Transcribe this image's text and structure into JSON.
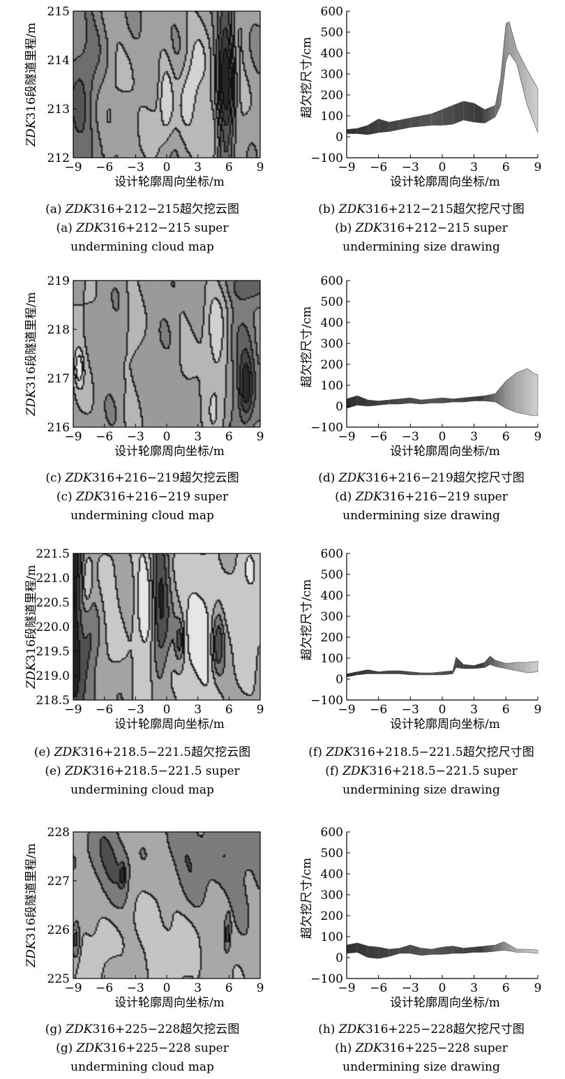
{
  "figure": {
    "x_tick_labels": [
      "−9",
      "−6",
      "−3",
      "0",
      "3",
      "6",
      "9"
    ],
    "x_axis_label": "设计轮廓周向坐标/m",
    "y_axis_label_size": "超欠挖尺寸/cm",
    "y_axis_label_station_prefix": "ZDK",
    "y_axis_label_station_rest": "316段隧道里程/m"
  },
  "panels": [
    {
      "id": "a",
      "kind": "contour",
      "caption_cn": [
        "(a) ",
        "ZDK",
        "316+212−215超欠挖云图"
      ],
      "caption_en_1": [
        "(a) ",
        "ZDK",
        "316+212−215 super"
      ],
      "caption_en_2": "undermining cloud map",
      "y_tick_labels": [
        "212",
        "213",
        "214",
        "215"
      ]
    },
    {
      "id": "b",
      "kind": "size",
      "caption_cn": [
        "(b) ",
        "ZDK",
        "316+212−215超欠挖尺寸图"
      ],
      "caption_en_1": [
        "(b) ",
        "ZDK",
        "316+212−215 super"
      ],
      "caption_en_2": "undermining size drawing",
      "y_tick_labels": [
        "−100",
        "0",
        "100",
        "200",
        "300",
        "400",
        "500",
        "600"
      ]
    },
    {
      "id": "c",
      "kind": "contour",
      "caption_cn": [
        "(c) ",
        "ZDK",
        "316+216−219超欠挖云图"
      ],
      "caption_en_1": [
        "(c) ",
        "ZDK",
        "316+216−219 super"
      ],
      "caption_en_2": "undermining cloud map",
      "y_tick_labels": [
        "216",
        "217",
        "218",
        "219"
      ]
    },
    {
      "id": "d",
      "kind": "size",
      "caption_cn": [
        "(d) ",
        "ZDK",
        "316+216−219超欠挖尺寸图"
      ],
      "caption_en_1": [
        "(d) ",
        "ZDK",
        "316+216−219 super"
      ],
      "caption_en_2": "undermining size drawing",
      "y_tick_labels": [
        "−100",
        "0",
        "100",
        "200",
        "300",
        "400",
        "500",
        "600"
      ]
    },
    {
      "id": "e",
      "kind": "contour",
      "caption_cn": [
        "(e) ",
        "ZDK",
        "316+218.5−221.5超欠挖云图"
      ],
      "caption_en_1": [
        "(e) ",
        "ZDK",
        "316+218.5−221.5 super"
      ],
      "caption_en_2": "undermining cloud map",
      "y_tick_labels": [
        "218.5",
        "219.0",
        "219.5",
        "220.0",
        "220.5",
        "221.0",
        "221.5"
      ]
    },
    {
      "id": "f",
      "kind": "size",
      "caption_cn": [
        "(f) ",
        "ZDK",
        "316+218.5−221.5超欠挖尺寸图"
      ],
      "caption_en_1": [
        "(f) ",
        "ZDK",
        "316+218.5−221.5 super"
      ],
      "caption_en_2": "undermining size drawing",
      "y_tick_labels": [
        "−100",
        "0",
        "100",
        "200",
        "300",
        "400",
        "500",
        "600"
      ]
    },
    {
      "id": "g",
      "kind": "contour",
      "caption_cn": [
        "(g) ",
        "ZDK",
        "316+225−228超欠挖云图"
      ],
      "caption_en_1": [
        "(g) ",
        "ZDK",
        "316+225−228 super"
      ],
      "caption_en_2": "undermining cloud map",
      "y_tick_labels": [
        "225",
        "226",
        "227",
        "228"
      ]
    },
    {
      "id": "h",
      "kind": "size",
      "caption_cn": [
        "(h) ",
        "ZDK",
        "316+225−228超欠挖尺寸图"
      ],
      "caption_en_1": [
        "(h) ",
        "ZDK",
        "316+225−228 super"
      ],
      "caption_en_2": "undermining size drawing",
      "y_tick_labels": [
        "−100",
        "0",
        "100",
        "200",
        "300",
        "400",
        "500",
        "600"
      ]
    }
  ],
  "chart_data": [
    {
      "panel": "a",
      "type": "heatmap",
      "xlabel": "设计轮廓周向坐标/m",
      "ylabel": "ZDK316段隧道里程/m",
      "xlim": [
        -9,
        9
      ],
      "ylim": [
        212,
        215
      ],
      "palette": [
        "#262626",
        "#3c3c3c",
        "#555555",
        "#6e6e6e",
        "#878787",
        "#a0a0a0",
        "#b9b9b9",
        "#d2d2d2"
      ],
      "features": [
        {
          "x": 5.8,
          "y": 213.6,
          "sx": 0.6,
          "sy": 1.6,
          "amp": -1.9
        },
        {
          "x": 6.6,
          "y": 213.5,
          "sx": 0.9,
          "sy": 2.5,
          "amp": 0.5
        },
        {
          "x": -8.6,
          "y": 212.5,
          "sx": 1.0,
          "sy": 0.8,
          "amp": -0.7
        },
        {
          "x": -7.5,
          "y": 214.2,
          "sx": 1.2,
          "sy": 1.0,
          "amp": -0.5
        },
        {
          "x": -5.0,
          "y": 213.5,
          "sx": 1.0,
          "sy": 1.5,
          "amp": 0.35
        },
        {
          "x": -1.5,
          "y": 212.8,
          "sx": 1.3,
          "sy": 0.8,
          "amp": 0.35
        },
        {
          "x": 0.0,
          "y": 213.2,
          "sx": 0.5,
          "sy": 0.6,
          "amp": 0.75
        },
        {
          "x": 2.2,
          "y": 213.1,
          "sx": 0.7,
          "sy": 0.6,
          "amp": 0.8
        },
        {
          "x": 3.2,
          "y": 214.3,
          "sx": 1.0,
          "sy": 0.7,
          "amp": 0.55
        },
        {
          "x": 4.2,
          "y": 212.4,
          "sx": 0.8,
          "sy": 0.6,
          "amp": 0.6
        }
      ]
    },
    {
      "panel": "b",
      "type": "area",
      "xlabel": "设计轮廓周向坐标/m",
      "ylabel": "超欠挖尺寸/cm",
      "xlim": [
        -9,
        9
      ],
      "ylim": [
        -100,
        600
      ],
      "x": [
        -9,
        -8,
        -7,
        -6,
        -5,
        -4,
        -3,
        -2,
        -1,
        0,
        1,
        2,
        3,
        4,
        5,
        5.5,
        6,
        6.3,
        7,
        8,
        9
      ],
      "upper": [
        35,
        40,
        55,
        85,
        70,
        80,
        90,
        100,
        110,
        130,
        150,
        170,
        160,
        130,
        150,
        280,
        540,
        550,
        420,
        320,
        230
      ],
      "lower": [
        15,
        15,
        10,
        20,
        25,
        35,
        45,
        50,
        55,
        55,
        60,
        80,
        70,
        65,
        95,
        150,
        360,
        400,
        350,
        150,
        20
      ]
    },
    {
      "panel": "c",
      "type": "heatmap",
      "xlabel": "设计轮廓周向坐标/m",
      "ylabel": "ZDK316段隧道里程/m",
      "xlim": [
        -9,
        9
      ],
      "ylim": [
        216,
        219
      ],
      "palette": [
        "#2a2a2a",
        "#464646",
        "#626262",
        "#7e7e7e",
        "#9a9a9a",
        "#b6b6b6",
        "#d0d0d0",
        "#e6e6e6"
      ],
      "features": [
        {
          "x": -8.4,
          "y": 217.2,
          "sx": 0.3,
          "sy": 0.25,
          "amp": 0.9
        },
        {
          "x": -8.2,
          "y": 217.6,
          "sx": 0.9,
          "sy": 1.0,
          "amp": 0.4
        },
        {
          "x": -3.2,
          "y": 217.5,
          "sx": 0.7,
          "sy": 3.0,
          "amp": 0.35
        },
        {
          "x": 1.8,
          "y": 217.4,
          "sx": 0.7,
          "sy": 2.0,
          "amp": 0.25
        },
        {
          "x": 4.8,
          "y": 217.4,
          "sx": 0.9,
          "sy": 1.2,
          "amp": 0.8
        },
        {
          "x": 7.7,
          "y": 216.8,
          "sx": 0.45,
          "sy": 0.45,
          "amp": -1.2
        },
        {
          "x": 7.3,
          "y": 217.2,
          "sx": 1.0,
          "sy": 0.8,
          "amp": -0.6
        },
        {
          "x": 7.8,
          "y": 218.9,
          "sx": 1.2,
          "sy": 0.25,
          "amp": -0.9
        }
      ]
    },
    {
      "panel": "d",
      "type": "area",
      "xlabel": "设计轮廓周向坐标/m",
      "ylabel": "超欠挖尺寸/cm",
      "xlim": [
        -9,
        9
      ],
      "ylim": [
        -100,
        600
      ],
      "x": [
        -9,
        -8,
        -7,
        -6,
        -5,
        -4,
        -3,
        -2,
        -1,
        0,
        1,
        2,
        3,
        4,
        5,
        6,
        7,
        8,
        8.5,
        9
      ],
      "upper": [
        35,
        50,
        30,
        25,
        30,
        35,
        40,
        30,
        35,
        40,
        35,
        40,
        45,
        50,
        60,
        120,
        160,
        180,
        160,
        150
      ],
      "lower": [
        -10,
        5,
        0,
        5,
        10,
        10,
        15,
        10,
        15,
        15,
        20,
        20,
        25,
        25,
        20,
        -10,
        -30,
        -40,
        -45,
        -45
      ]
    },
    {
      "panel": "e",
      "type": "heatmap",
      "xlabel": "设计轮廓周向坐标/m",
      "ylabel": "ZDK316段隧道里程/m",
      "xlim": [
        -9,
        9
      ],
      "ylim": [
        218.5,
        221.5
      ],
      "palette": [
        "#222222",
        "#505050",
        "#7a7a7a",
        "#a3a3a3",
        "#c8c8c8",
        "#e6e6e6"
      ],
      "features": [
        {
          "x": -8.8,
          "y": 220.0,
          "sx": 0.45,
          "sy": 1.8,
          "amp": -1.1
        },
        {
          "x": -7.5,
          "y": 219.2,
          "sx": 0.6,
          "sy": 0.9,
          "amp": -0.6
        },
        {
          "x": -7.6,
          "y": 220.9,
          "sx": 0.35,
          "sy": 0.4,
          "amp": 0.7
        },
        {
          "x": -5.3,
          "y": 220.3,
          "sx": 0.8,
          "sy": 1.0,
          "amp": 0.45
        },
        {
          "x": -2.0,
          "y": 220.4,
          "sx": 0.8,
          "sy": 1.8,
          "amp": 0.85
        },
        {
          "x": -0.6,
          "y": 220.5,
          "sx": 0.6,
          "sy": 1.0,
          "amp": -1.1
        },
        {
          "x": 1.3,
          "y": 219.7,
          "sx": 0.3,
          "sy": 0.3,
          "amp": -0.9
        },
        {
          "x": 3.2,
          "y": 220.0,
          "sx": 1.4,
          "sy": 2.0,
          "amp": 0.8
        },
        {
          "x": 5.0,
          "y": 219.7,
          "sx": 0.4,
          "sy": 0.5,
          "amp": -1.0
        },
        {
          "x": 7.8,
          "y": 220.5,
          "sx": 1.2,
          "sy": 1.2,
          "amp": 0.6
        }
      ]
    },
    {
      "panel": "f",
      "type": "area",
      "xlabel": "设计轮廓周向坐标/m",
      "ylabel": "超欠挖尺寸/cm",
      "xlim": [
        -9,
        9
      ],
      "ylim": [
        -100,
        600
      ],
      "x": [
        -9,
        -8,
        -7,
        -6,
        -5,
        -4,
        -3,
        -2,
        -1,
        0,
        1,
        1.3,
        2,
        3,
        4,
        4.5,
        5,
        6,
        7,
        8,
        9
      ],
      "upper": [
        25,
        35,
        45,
        35,
        40,
        40,
        35,
        30,
        30,
        35,
        40,
        105,
        70,
        65,
        80,
        110,
        90,
        75,
        80,
        80,
        85
      ],
      "lower": [
        10,
        20,
        25,
        25,
        25,
        25,
        20,
        20,
        20,
        20,
        25,
        55,
        50,
        50,
        55,
        70,
        60,
        50,
        40,
        30,
        35
      ]
    },
    {
      "panel": "g",
      "type": "heatmap",
      "xlabel": "设计轮廓周向坐标/m",
      "ylabel": "ZDK316段隧道里程/m",
      "xlim": [
        -9,
        9
      ],
      "ylim": [
        225,
        228
      ],
      "palette": [
        "#2a2a2a",
        "#4f4f4f",
        "#7c7c7c",
        "#a8a8a8",
        "#c4c4c4"
      ],
      "features": [
        {
          "x": -5.5,
          "y": 227.4,
          "sx": 1.6,
          "sy": 0.6,
          "amp": -0.7
        },
        {
          "x": 2.0,
          "y": 227.5,
          "sx": 1.5,
          "sy": 0.7,
          "amp": -0.6
        },
        {
          "x": 7.0,
          "y": 227.5,
          "sx": 2.0,
          "sy": 0.8,
          "amp": -0.5
        },
        {
          "x": -8.7,
          "y": 225.8,
          "sx": 0.3,
          "sy": 0.3,
          "amp": -1.0
        },
        {
          "x": -4.2,
          "y": 227.1,
          "sx": 0.2,
          "sy": 0.15,
          "amp": -0.9
        },
        {
          "x": 5.9,
          "y": 225.9,
          "sx": 0.2,
          "sy": 0.25,
          "amp": -0.8
        },
        {
          "x": -7.0,
          "y": 225.5,
          "sx": 1.5,
          "sy": 0.8,
          "amp": 0.4
        },
        {
          "x": 0.0,
          "y": 225.6,
          "sx": 2.0,
          "sy": 1.0,
          "amp": 0.4
        },
        {
          "x": -5.0,
          "y": 225.1,
          "sx": 0.7,
          "sy": 0.3,
          "amp": -0.4
        }
      ]
    },
    {
      "panel": "h",
      "type": "area",
      "xlabel": "设计轮廓周向坐标/m",
      "ylabel": "超欠挖尺寸/cm",
      "xlim": [
        -9,
        9
      ],
      "ylim": [
        -100,
        600
      ],
      "x": [
        -9,
        -8,
        -7,
        -6,
        -5,
        -4,
        -3,
        -2,
        -1,
        0,
        1,
        2,
        3,
        4,
        5,
        5.8,
        6.5,
        7,
        8,
        9
      ],
      "upper": [
        60,
        70,
        55,
        50,
        40,
        45,
        60,
        45,
        40,
        50,
        55,
        45,
        50,
        55,
        60,
        75,
        55,
        40,
        40,
        35
      ],
      "lower": [
        20,
        25,
        0,
        -5,
        5,
        20,
        20,
        10,
        15,
        15,
        20,
        20,
        25,
        25,
        30,
        35,
        30,
        25,
        25,
        20
      ]
    }
  ]
}
